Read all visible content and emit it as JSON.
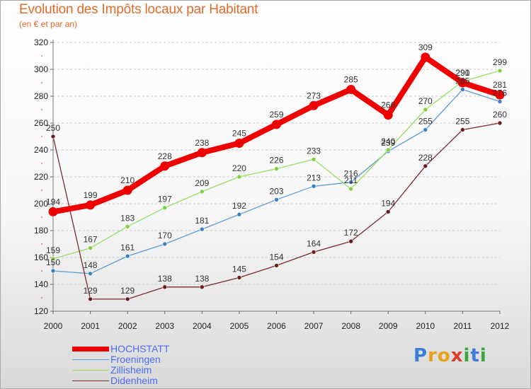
{
  "header": {
    "title": "Evolution des Impôts locaux par Habitant",
    "subtitle": "(en € et par an)"
  },
  "brand": {
    "letters": [
      "P",
      "r",
      "o",
      "x",
      "i",
      "t",
      "i"
    ],
    "colors": [
      "#3a7fd5",
      "#e8a21a",
      "#e8a21a",
      "#e03a2a",
      "#3aa63a",
      "#3a7fd5",
      "#3aa63a"
    ]
  },
  "chart_data": {
    "type": "line",
    "title": "Evolution des Impôts locaux par Habitant",
    "subtitle": "(en € et par an)",
    "xlabel": "",
    "ylabel": "",
    "x": [
      "2000",
      "2001",
      "2002",
      "2003",
      "2004",
      "2005",
      "2006",
      "2007",
      "2008",
      "2009",
      "2010",
      "2011",
      "2012"
    ],
    "ylim": [
      120,
      320
    ],
    "yticks": [
      120,
      140,
      160,
      180,
      200,
      220,
      240,
      260,
      280,
      300,
      320
    ],
    "grid": "horizontal dashed",
    "legend_position": "bottom-left",
    "series": [
      {
        "name": "HOCHSTATT",
        "color": "#ee0000",
        "emphasis": "thick",
        "values": [
          194,
          199,
          210,
          228,
          238,
          245,
          259,
          273,
          285,
          266,
          309,
          290,
          281
        ],
        "labels": [
          "194",
          "199",
          "210",
          "228",
          "238",
          "245",
          "259",
          "273",
          "285",
          "266",
          "309",
          "290",
          "281"
        ]
      },
      {
        "name": "Froeningen",
        "color": "#5b9bd5",
        "values": [
          150,
          148,
          161,
          170,
          181,
          192,
          203,
          213,
          216,
          239,
          255,
          285,
          276
        ],
        "labels": [
          "150",
          "148",
          "161",
          "170",
          "181",
          "192",
          "203",
          "213",
          "216",
          "239",
          "255",
          "285",
          "276"
        ]
      },
      {
        "name": "Zillisheim",
        "color": "#99dd66",
        "values": [
          159,
          167,
          183,
          197,
          209,
          220,
          226,
          233,
          211,
          240,
          270,
          291,
          299
        ],
        "labels": [
          "159",
          "167",
          "183",
          "197",
          "209",
          "220",
          "226",
          "233",
          "211",
          "240",
          "270",
          "291",
          "299"
        ]
      },
      {
        "name": "Didenheim",
        "color": "#7a2a2a",
        "values": [
          250,
          129,
          129,
          138,
          138,
          145,
          154,
          164,
          172,
          194,
          228,
          255,
          260
        ],
        "labels": [
          "250",
          "129",
          "129",
          "138",
          "138",
          "145",
          "154",
          "164",
          "172",
          "194",
          "228",
          "255",
          "260"
        ]
      }
    ]
  }
}
